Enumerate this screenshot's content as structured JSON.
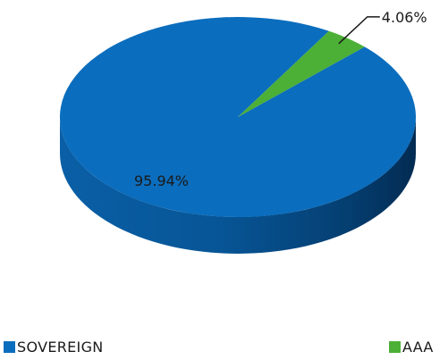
{
  "chart_data": {
    "type": "pie",
    "style": "3d",
    "categories": [
      "SOVEREIGN",
      "AAA"
    ],
    "values": [
      95.94,
      4.06
    ],
    "data_labels": [
      "95.94%",
      "4.06%"
    ],
    "colors": [
      "#0b6dbd",
      "#4caf36"
    ],
    "legend_position": "bottom"
  }
}
